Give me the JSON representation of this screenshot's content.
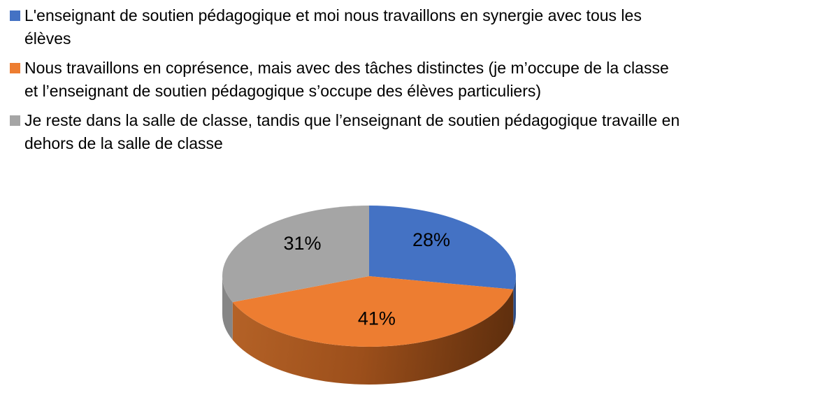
{
  "page": {
    "background": "#FFFFFF"
  },
  "legend": {
    "position": "top-left",
    "items": [
      {
        "color": "#4472C4",
        "lines": [
          "L'enseignant de soutien pédagogique et moi nous travaillons en synergie avec tous les",
          "élèves"
        ]
      },
      {
        "color": "#ED7D31",
        "lines": [
          "Nous travaillons en coprésence, mais avec des tâches distinctes (je m’occupe de la classe",
          "et l’enseignant de soutien pédagogique s’occupe des élèves particuliers)"
        ]
      },
      {
        "color": "#A5A5A5",
        "lines": [
          "Je reste dans la salle de classe, tandis que l’enseignant de soutien pédagogique travaille en",
          "dehors de la salle de classe"
        ]
      }
    ]
  },
  "chart_data": {
    "type": "pie",
    "style": "3d",
    "title": "",
    "direction": "clockwise",
    "start_angle": "12-o'clock",
    "legend_position": "top-left",
    "label_color": "#000000",
    "slices": [
      {
        "label": "L'enseignant de soutien pédagogique et moi nous travaillons en synergie avec tous les élèves",
        "value": 28,
        "display": "28%",
        "color": "#4472C4",
        "side": "#2E4E87"
      },
      {
        "label": "Nous travaillons en coprésence, mais avec des tâches distinctes (je m’occupe de la classe et l’enseignant de soutien pédagogique s’occupe des élèves particuliers)",
        "value": 41,
        "display": "41%",
        "color": "#ED7D31",
        "side": [
          "#B76428",
          "#9C4F1B",
          "#5E2E0D"
        ]
      },
      {
        "label": "Je reste dans la salle de classe, tandis que l’enseignant de soutien pédagogique travaille en dehors de la salle de classe",
        "value": 31,
        "display": "31%",
        "color": "#A5A5A5",
        "side": "#868686"
      }
    ]
  }
}
